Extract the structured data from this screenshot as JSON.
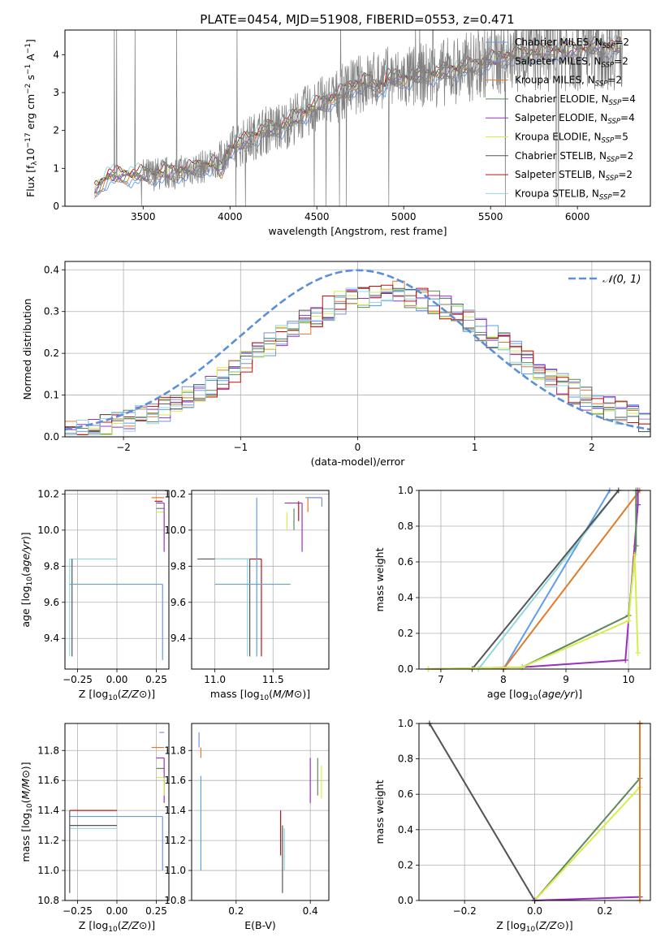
{
  "figure_title": "PLATE=0454, MJD=51908, FIBERID=0553, z=0.471",
  "colors": {
    "Chabrier MILES": "#5f9ee8",
    "Salpeter MILES": "#7b8fd8",
    "Kroupa MILES": "#e07b2a",
    "Chabrier ELODIE": "#5c8a5c",
    "Salpeter ELODIE": "#9b30c0",
    "Kroupa ELODIE": "#d7ee4a",
    "Chabrier STELIB": "#555555",
    "Salpeter STELIB": "#c01010",
    "Kroupa STELIB": "#8fd8e0",
    "Normal curve": "#5b8fd8",
    "data": "#808080"
  },
  "chart_data": [
    {
      "id": "spectrum",
      "type": "line",
      "xlabel": "wavelength [Angstrom, rest frame]",
      "ylabel": "Flux [f_λ 10^-17 erg cm^-2 s^-1 A^-1]",
      "xlim": [
        3050,
        6420
      ],
      "ylim": [
        0,
        4.65
      ],
      "xticks": [
        3500,
        4000,
        4500,
        5000,
        5500,
        6000
      ],
      "yticks": [
        0,
        1,
        2,
        3,
        4
      ],
      "grid": false,
      "legend_position": "top-right",
      "model_continuum": {
        "x": [
          3220,
          3300,
          3500,
          3700,
          3900,
          4000,
          4100,
          4200,
          4300,
          4400,
          4500,
          4600,
          4700,
          4800,
          4900,
          5000,
          5100,
          5200,
          5300,
          5400,
          5500,
          5600,
          5700,
          5800,
          5900,
          6000,
          6100,
          6250
        ],
        "y": [
          0.4,
          0.8,
          0.82,
          0.9,
          1.1,
          1.5,
          1.75,
          2.0,
          2.1,
          2.4,
          2.65,
          2.85,
          3.15,
          3.3,
          3.4,
          3.35,
          3.45,
          3.5,
          3.6,
          3.7,
          3.85,
          3.95,
          4.0,
          4.05,
          4.1,
          4.1,
          4.2,
          4.2
        ]
      },
      "legend": [
        {
          "label": "Chabrier MILES, N_SSP=2",
          "key": "Chabrier MILES"
        },
        {
          "label": "Salpeter MILES, N_SSP=2",
          "key": "Salpeter MILES"
        },
        {
          "label": "Kroupa MILES, N_SSP=2",
          "key": "Kroupa MILES"
        },
        {
          "label": "Chabrier ELODIE, N_SSP=4",
          "key": "Chabrier ELODIE"
        },
        {
          "label": "Salpeter ELODIE, N_SSP=4",
          "key": "Salpeter ELODIE"
        },
        {
          "label": "Kroupa ELODIE, N_SSP=5",
          "key": "Kroupa ELODIE"
        },
        {
          "label": "Chabrier STELIB, N_SSP=2",
          "key": "Chabrier STELIB"
        },
        {
          "label": "Salpeter STELIB, N_SSP=2",
          "key": "Salpeter STELIB"
        },
        {
          "label": "Kroupa STELIB, N_SSP=2",
          "key": "Kroupa STELIB"
        }
      ]
    },
    {
      "id": "residuals",
      "type": "line",
      "xlabel": "(data-model)/error",
      "ylabel": "Normed distribution",
      "xlim": [
        -2.5,
        2.5
      ],
      "ylim": [
        0,
        0.42
      ],
      "xticks": [
        -2,
        -1,
        0,
        1,
        2
      ],
      "yticks": [
        0.0,
        0.1,
        0.2,
        0.3,
        0.4
      ],
      "grid": true,
      "legend_position": "top-right",
      "legend_label": "𝒩(0, 1)",
      "bin_edges_from": -2.5,
      "bin_width": 0.1
    },
    {
      "id": "age_vs_Z",
      "type": "line",
      "xlabel": "Z [log10(Z/Z⊙)]",
      "ylabel": "age  [log10(age/yr)]",
      "xlim": [
        -0.33,
        0.33
      ],
      "ylim": [
        9.23,
        10.22
      ],
      "xticks": [
        -0.25,
        0.0,
        0.25
      ],
      "xticklabels": [
        "−0.25",
        "0.00",
        "0.25"
      ],
      "yticks": [
        9.4,
        9.6,
        9.8,
        10.0,
        10.2
      ],
      "grid": true,
      "segments": [
        {
          "series": "Kroupa STELIB",
          "x": [
            -0.3,
            0.0
          ],
          "y": [
            9.84,
            9.84
          ]
        },
        {
          "series": "Kroupa STELIB",
          "x": [
            -0.3,
            -0.3
          ],
          "y": [
            9.3,
            9.84
          ]
        },
        {
          "series": "Chabrier STELIB",
          "x": [
            -0.285,
            -0.285
          ],
          "y": [
            9.3,
            9.84
          ]
        },
        {
          "series": "Chabrier MILES",
          "x": [
            -0.3,
            0.29
          ],
          "y": [
            9.7,
            9.7
          ]
        },
        {
          "series": "Chabrier MILES",
          "x": [
            0.29,
            0.29
          ],
          "y": [
            9.28,
            9.7
          ]
        },
        {
          "series": "Kroupa MILES",
          "x": [
            0.22,
            0.3
          ],
          "y": [
            10.18,
            10.18
          ]
        },
        {
          "series": "Salpeter STELIB",
          "x": [
            0.24,
            0.29
          ],
          "y": [
            10.16,
            10.16
          ]
        },
        {
          "series": "Salpeter ELODIE",
          "x": [
            0.25,
            0.3
          ],
          "y": [
            10.15,
            10.15
          ]
        },
        {
          "series": "Chabrier ELODIE",
          "x": [
            0.25,
            0.3
          ],
          "y": [
            10.12,
            10.12
          ]
        },
        {
          "series": "Kroupa ELODIE",
          "x": [
            0.25,
            0.3
          ],
          "y": [
            10.1,
            10.1
          ]
        },
        {
          "series": "Kroupa ELODIE",
          "x": [
            0.3,
            0.3
          ],
          "y": [
            10.0,
            10.1
          ]
        },
        {
          "series": "Salpeter ELODIE",
          "x": [
            0.3,
            0.3
          ],
          "y": [
            9.88,
            10.15
          ]
        }
      ]
    },
    {
      "id": "age_vs_mass",
      "type": "line",
      "xlabel": "mass [log10(M/M⊙)]",
      "ylabel": "",
      "xlim": [
        10.8,
        11.98
      ],
      "ylim": [
        9.23,
        10.22
      ],
      "xticks": [
        11.0,
        11.5
      ],
      "xticklabels": [
        "11.0",
        "11.5"
      ],
      "yticks": [
        9.4,
        9.6,
        9.8,
        10.0,
        10.2
      ],
      "grid": true,
      "segments": [
        {
          "series": "Chabrier STELIB",
          "x": [
            10.85,
            11.3
          ],
          "y": [
            9.84,
            9.84
          ]
        },
        {
          "series": "Kroupa STELIB",
          "x": [
            11.0,
            11.3
          ],
          "y": [
            9.84,
            9.84
          ]
        },
        {
          "series": "Salpeter STELIB",
          "x": [
            11.3,
            11.4
          ],
          "y": [
            9.84,
            9.84
          ]
        },
        {
          "series": "Salpeter STELIB",
          "x": [
            11.4,
            11.4
          ],
          "y": [
            9.3,
            9.84
          ]
        },
        {
          "series": "Chabrier STELIB",
          "x": [
            11.3,
            11.3
          ],
          "y": [
            9.3,
            9.84
          ]
        },
        {
          "series": "Kroupa STELIB",
          "x": [
            11.28,
            11.28
          ],
          "y": [
            9.3,
            9.84
          ]
        },
        {
          "series": "Chabrier MILES",
          "x": [
            11.0,
            11.65
          ],
          "y": [
            9.7,
            9.7
          ]
        },
        {
          "series": "Chabrier MILES",
          "x": [
            11.36,
            11.36
          ],
          "y": [
            9.3,
            10.18
          ]
        },
        {
          "series": "Salpeter ELODIE",
          "x": [
            11.6,
            11.75
          ],
          "y": [
            10.15,
            10.15
          ]
        },
        {
          "series": "Salpeter ELODIE",
          "x": [
            11.75,
            11.75
          ],
          "y": [
            9.88,
            10.15
          ]
        },
        {
          "series": "Chabrier ELODIE",
          "x": [
            11.68,
            11.68
          ],
          "y": [
            10.0,
            10.12
          ]
        },
        {
          "series": "Kroupa ELODIE",
          "x": [
            11.62,
            11.62
          ],
          "y": [
            10.0,
            10.1
          ]
        },
        {
          "series": "Kroupa MILES",
          "x": [
            11.8,
            11.8
          ],
          "y": [
            10.1,
            10.18
          ]
        },
        {
          "series": "Salpeter MILES",
          "x": [
            11.78,
            11.92
          ],
          "y": [
            10.18,
            10.18
          ]
        },
        {
          "series": "Salpeter MILES",
          "x": [
            11.92,
            11.92
          ],
          "y": [
            10.13,
            10.18
          ]
        },
        {
          "series": "Salpeter STELIB",
          "x": [
            11.72,
            11.72
          ],
          "y": [
            10.05,
            10.16
          ]
        }
      ]
    },
    {
      "id": "mass_weight_vs_age",
      "type": "line",
      "xlabel": "age  [log10(age/yr)]",
      "ylabel": "mass weight",
      "xlim": [
        6.65,
        10.35
      ],
      "ylim": [
        0,
        1.0
      ],
      "xticks": [
        7,
        8,
        9,
        10
      ],
      "yticks": [
        0.0,
        0.2,
        0.4,
        0.6,
        0.8,
        1.0
      ],
      "grid": true,
      "series": [
        {
          "key": "Chabrier MILES",
          "x": [
            8.0,
            9.7
          ],
          "y": [
            0.0,
            1.0
          ]
        },
        {
          "key": "Kroupa STELIB",
          "x": [
            7.6,
            9.84
          ],
          "y": [
            0.0,
            1.0
          ]
        },
        {
          "key": "Chabrier STELIB",
          "x": [
            7.5,
            9.84
          ],
          "y": [
            0.0,
            1.0
          ]
        },
        {
          "key": "Kroupa MILES",
          "x": [
            8.0,
            10.18
          ],
          "y": [
            0.0,
            1.0
          ]
        },
        {
          "key": "Salpeter ELODIE",
          "x": [
            6.8,
            8.3,
            9.95,
            10.15,
            10.15
          ],
          "y": [
            0.0,
            0.01,
            0.05,
            0.92,
            1.0
          ]
        },
        {
          "key": "Chabrier ELODIE",
          "x": [
            8.3,
            10.0,
            10.12,
            10.12
          ],
          "y": [
            0.01,
            0.3,
            0.69,
            1.0
          ]
        },
        {
          "key": "Kroupa ELODIE",
          "x": [
            6.8,
            8.3,
            10.0,
            10.1,
            10.15
          ],
          "y": [
            0.0,
            0.01,
            0.27,
            0.64,
            0.09
          ]
        }
      ]
    },
    {
      "id": "mass_vs_Z",
      "type": "line",
      "xlabel": "Z [log10(Z/Z⊙)]",
      "ylabel": "mass [log10(M/M⊙)]",
      "xlim": [
        -0.33,
        0.33
      ],
      "ylim": [
        10.8,
        11.98
      ],
      "xticks": [
        -0.25,
        0.0,
        0.25
      ],
      "xticklabels": [
        "−0.25",
        "0.00",
        "0.25"
      ],
      "yticks": [
        10.8,
        11.0,
        11.2,
        11.4,
        11.6,
        11.8
      ],
      "grid": true,
      "segments": [
        {
          "series": "Salpeter STELIB",
          "x": [
            -0.3,
            0.0
          ],
          "y": [
            11.4,
            11.4
          ]
        },
        {
          "series": "Chabrier STELIB",
          "x": [
            -0.3,
            0.0
          ],
          "y": [
            11.3,
            11.3
          ]
        },
        {
          "series": "Kroupa STELIB",
          "x": [
            -0.3,
            0.0
          ],
          "y": [
            11.28,
            11.28
          ]
        },
        {
          "series": "Chabrier MILES",
          "x": [
            -0.3,
            0.29
          ],
          "y": [
            11.36,
            11.36
          ]
        },
        {
          "series": "Chabrier MILES",
          "x": [
            0.29,
            0.29
          ],
          "y": [
            11.0,
            11.36
          ]
        },
        {
          "series": "Chabrier STELIB",
          "x": [
            -0.3,
            -0.3
          ],
          "y": [
            10.85,
            11.4
          ]
        },
        {
          "series": "Kroupa MILES",
          "x": [
            0.22,
            0.3
          ],
          "y": [
            11.82,
            11.82
          ]
        },
        {
          "series": "Salpeter MILES",
          "x": [
            0.27,
            0.3
          ],
          "y": [
            11.92,
            11.92
          ]
        },
        {
          "series": "Salpeter ELODIE",
          "x": [
            0.25,
            0.3
          ],
          "y": [
            11.75,
            11.75
          ]
        },
        {
          "series": "Chabrier ELODIE",
          "x": [
            0.25,
            0.3
          ],
          "y": [
            11.68,
            11.68
          ]
        },
        {
          "series": "Kroupa ELODIE",
          "x": [
            0.25,
            0.3
          ],
          "y": [
            11.62,
            11.62
          ]
        },
        {
          "series": "Salpeter ELODIE",
          "x": [
            0.3,
            0.3
          ],
          "y": [
            11.45,
            11.75
          ]
        },
        {
          "series": "Kroupa ELODIE",
          "x": [
            0.3,
            0.3
          ],
          "y": [
            11.5,
            11.62
          ]
        }
      ]
    },
    {
      "id": "mass_vs_EBV",
      "type": "line",
      "xlabel": "E(B-V)",
      "ylabel": "",
      "xlim": [
        0.08,
        0.45
      ],
      "ylim": [
        10.8,
        11.98
      ],
      "xticks": [
        0.2,
        0.4
      ],
      "xticklabels": [
        "0.2",
        "0.4"
      ],
      "yticks": [
        10.8,
        11.0,
        11.2,
        11.4,
        11.6,
        11.8
      ],
      "grid": true,
      "segments": [
        {
          "series": "Salpeter MILES",
          "x": [
            0.1,
            0.1
          ],
          "y": [
            11.82,
            11.92
          ]
        },
        {
          "series": "Kroupa MILES",
          "x": [
            0.105,
            0.105
          ],
          "y": [
            11.75,
            11.82
          ]
        },
        {
          "series": "Chabrier MILES",
          "x": [
            0.105,
            0.105
          ],
          "y": [
            11.0,
            11.63
          ]
        },
        {
          "series": "Salpeter STELIB",
          "x": [
            0.32,
            0.32
          ],
          "y": [
            11.1,
            11.4
          ]
        },
        {
          "series": "Chabrier STELIB",
          "x": [
            0.325,
            0.325
          ],
          "y": [
            10.85,
            11.3
          ]
        },
        {
          "series": "Kroupa STELIB",
          "x": [
            0.33,
            0.33
          ],
          "y": [
            11.0,
            11.28
          ]
        },
        {
          "series": "Salpeter ELODIE",
          "x": [
            0.4,
            0.4
          ],
          "y": [
            11.45,
            11.75
          ]
        },
        {
          "series": "Chabrier ELODIE",
          "x": [
            0.42,
            0.42
          ],
          "y": [
            11.5,
            11.75
          ]
        },
        {
          "series": "Kroupa ELODIE",
          "x": [
            0.43,
            0.43
          ],
          "y": [
            11.48,
            11.7
          ]
        }
      ]
    },
    {
      "id": "mass_weight_vs_Z",
      "type": "line",
      "xlabel": "Z [log10(Z/Z⊙)]",
      "ylabel": "mass weight",
      "xlim": [
        -0.33,
        0.33
      ],
      "ylim": [
        0,
        1.0
      ],
      "xticks": [
        -0.2,
        0.0,
        0.2
      ],
      "xticklabels": [
        "−0.2",
        "0.0",
        "0.2"
      ],
      "yticks": [
        0.0,
        0.2,
        0.4,
        0.6,
        0.8,
        1.0
      ],
      "grid": true,
      "series": [
        {
          "key": "Kroupa STELIB",
          "x": [
            -0.3,
            0.0
          ],
          "y": [
            1.0,
            0.0
          ]
        },
        {
          "key": "Chabrier STELIB",
          "x": [
            -0.3,
            0.0
          ],
          "y": [
            1.0,
            0.0
          ]
        },
        {
          "key": "Chabrier ELODIE",
          "x": [
            0.0,
            0.3,
            0.3
          ],
          "y": [
            0.0,
            0.69,
            1.0
          ]
        },
        {
          "key": "Kroupa ELODIE",
          "x": [
            0.0,
            0.3,
            0.3
          ],
          "y": [
            0.0,
            0.64,
            0.02
          ]
        },
        {
          "key": "Salpeter ELODIE",
          "x": [
            0.0,
            0.3,
            0.3
          ],
          "y": [
            0.0,
            0.02,
            1.0
          ]
        },
        {
          "key": "Kroupa MILES",
          "x": [
            0.3,
            0.3
          ],
          "y": [
            0.0,
            1.0
          ]
        }
      ]
    }
  ]
}
